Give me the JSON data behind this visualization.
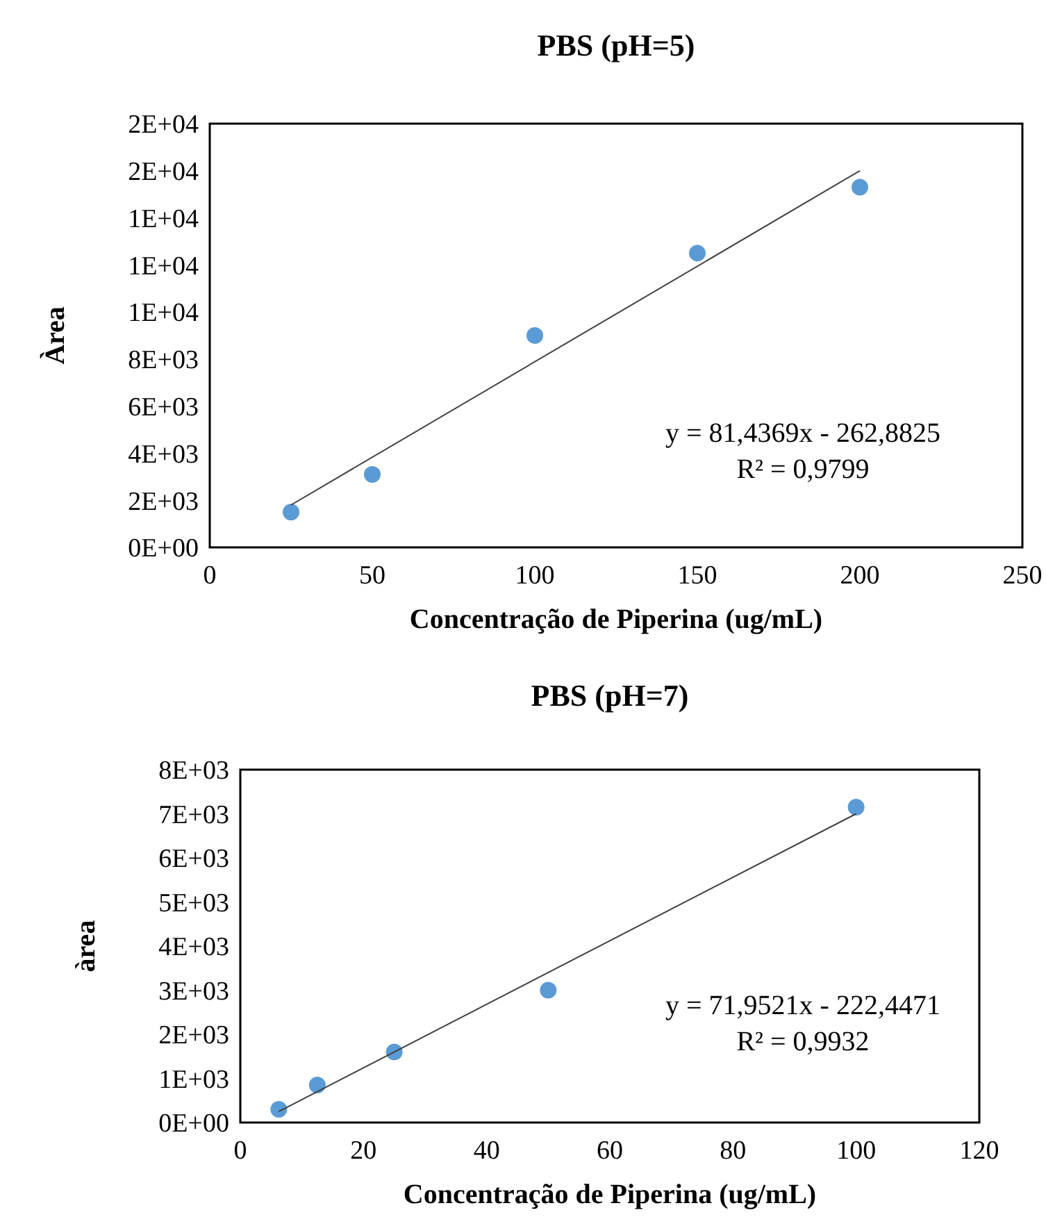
{
  "chart_data": [
    {
      "type": "scatter",
      "title": "PBS (pH=5)",
      "xlabel": "Concentração de Piperina (ug/mL)",
      "ylabel": "Àrea",
      "grid": false,
      "xlim": [
        0,
        250
      ],
      "xticks": [
        0,
        50,
        100,
        150,
        200,
        250
      ],
      "ylim": [
        0,
        18000
      ],
      "yticks": [
        {
          "value": 0,
          "label": "0E+00"
        },
        {
          "value": 2000,
          "label": "2E+03"
        },
        {
          "value": 4000,
          "label": "4E+03"
        },
        {
          "value": 6000,
          "label": "6E+03"
        },
        {
          "value": 8000,
          "label": "8E+03"
        },
        {
          "value": 10000,
          "label": "1E+04"
        },
        {
          "value": 12000,
          "label": "1E+04"
        },
        {
          "value": 14000,
          "label": "1E+04"
        },
        {
          "value": 16000,
          "label": "2E+04"
        },
        {
          "value": 18000,
          "label": "2E+04"
        }
      ],
      "series": [
        {
          "marker": "circle",
          "color": "#5b9bd5",
          "x": [
            25,
            50,
            100,
            150,
            200
          ],
          "values": [
            1500,
            3100,
            9000,
            12500,
            15300
          ]
        },
        {
          "type": "line",
          "color": "#404040",
          "x": [
            25,
            200
          ],
          "values": [
            1800,
            16000
          ]
        }
      ],
      "annotations": [
        "y = 81,4369x - 262,8825",
        "R² = 0,9799"
      ]
    },
    {
      "type": "scatter",
      "title": "PBS (pH=7)",
      "xlabel": "Concentração de Piperina (ug/mL)",
      "ylabel": "àrea",
      "grid": false,
      "xlim": [
        0,
        120
      ],
      "xticks": [
        0,
        20,
        40,
        60,
        80,
        100,
        120
      ],
      "ylim": [
        0,
        8000
      ],
      "yticks": [
        {
          "value": 0,
          "label": "0E+00"
        },
        {
          "value": 1000,
          "label": "1E+03"
        },
        {
          "value": 2000,
          "label": "2E+03"
        },
        {
          "value": 3000,
          "label": "3E+03"
        },
        {
          "value": 4000,
          "label": "4E+03"
        },
        {
          "value": 5000,
          "label": "5E+03"
        },
        {
          "value": 6000,
          "label": "6E+03"
        },
        {
          "value": 7000,
          "label": "7E+03"
        },
        {
          "value": 8000,
          "label": "8E+03"
        }
      ],
      "series": [
        {
          "marker": "circle",
          "color": "#5b9bd5",
          "x": [
            6.25,
            12.5,
            25,
            50,
            100
          ],
          "values": [
            300,
            850,
            1600,
            3000,
            7150
          ]
        },
        {
          "type": "line",
          "color": "#404040",
          "x": [
            6.25,
            100
          ],
          "values": [
            250,
            7000
          ]
        }
      ],
      "annotations": [
        "y = 71,9521x - 222,4471",
        "R² = 0,9932"
      ]
    }
  ]
}
